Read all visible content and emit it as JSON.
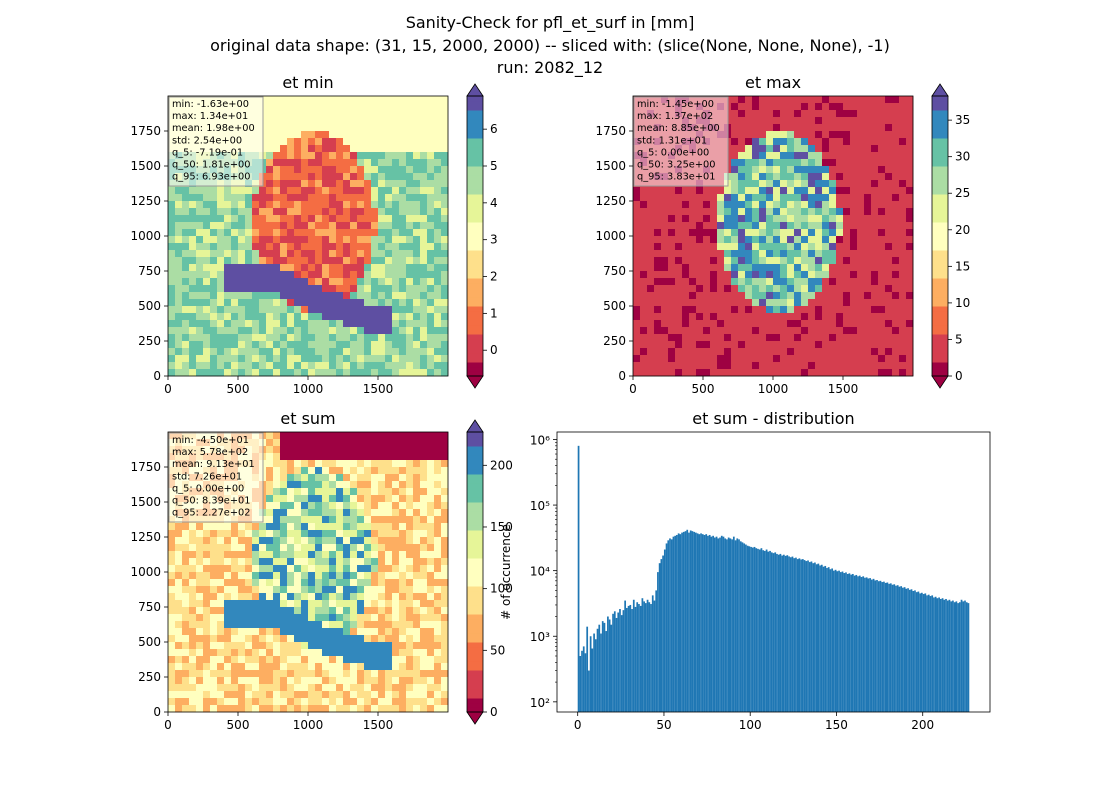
{
  "figure": {
    "title_lines": [
      "Sanity-Check for pfl_et_surf in [mm]",
      "original data shape: (31, 15, 2000, 2000) -- sliced with: (slice(None, None, None), -1)",
      "run: 2082_12"
    ]
  },
  "chart_data": [
    {
      "type": "heatmap",
      "title": "et min",
      "colormap": "Spectral",
      "xlim": [
        0,
        2000
      ],
      "ylim": [
        0,
        2000
      ],
      "x_ticks": [
        0,
        500,
        1000,
        1500
      ],
      "y_ticks": [
        0,
        250,
        500,
        750,
        1000,
        1250,
        1500,
        1750
      ],
      "colorbar": {
        "range": [
          -0.7,
          6.9
        ],
        "ticks": [
          0,
          1,
          2,
          3,
          4,
          5,
          6
        ],
        "extend": "both"
      },
      "stats": [
        "min: -1.63e+00",
        "max: 1.34e+01",
        "mean: 1.98e+00",
        "std: 2.54e+00",
        "q_5: -7.19e-01",
        "q_50: 1.81e+00",
        "q_95: 6.93e+00"
      ]
    },
    {
      "type": "heatmap",
      "title": "et max",
      "colormap": "Spectral",
      "xlim": [
        0,
        2000
      ],
      "ylim": [
        0,
        2000
      ],
      "x_ticks": [
        0,
        500,
        1000,
        1500
      ],
      "y_ticks": [
        0,
        250,
        500,
        750,
        1000,
        1250,
        1500,
        1750
      ],
      "colorbar": {
        "range": [
          0,
          38.3
        ],
        "ticks": [
          0,
          5,
          10,
          15,
          20,
          25,
          30,
          35
        ],
        "extend": "both"
      },
      "stats": [
        "min: -1.45e+00",
        "max: 1.37e+02",
        "mean: 8.85e+00",
        "std: 1.31e+01",
        "q_5: 0.00e+00",
        "q_50: 3.25e+00",
        "q_95: 3.83e+01"
      ]
    },
    {
      "type": "heatmap",
      "title": "et sum",
      "colormap": "Spectral",
      "xlim": [
        0,
        2000
      ],
      "ylim": [
        0,
        2000
      ],
      "x_ticks": [
        0,
        500,
        1000,
        1500
      ],
      "y_ticks": [
        0,
        250,
        500,
        750,
        1000,
        1250,
        1500,
        1750
      ],
      "colorbar": {
        "range": [
          0,
          227
        ],
        "ticks": [
          0,
          50,
          100,
          150,
          200
        ],
        "extend": "both"
      },
      "stats": [
        "min: -4.50e+01",
        "max: 5.78e+02",
        "mean: 9.13e+01",
        "std: 7.26e+01",
        "q_5: 0.00e+00",
        "q_50: 8.39e+01",
        "q_95: 2.27e+02"
      ]
    },
    {
      "type": "bar",
      "title": "et sum - distribution",
      "ylabel": "# of occurrence",
      "xlabel": "",
      "yscale": "log",
      "xlim": [
        -12,
        239
      ],
      "ylim": [
        70,
        1300000
      ],
      "x_ticks": [
        0,
        50,
        100,
        150,
        200
      ],
      "y_ticks": [
        {
          "value": 100,
          "label": "10²"
        },
        {
          "value": 1000,
          "label": "10³"
        },
        {
          "value": 10000,
          "label": "10⁴"
        },
        {
          "value": 100000,
          "label": "10⁵"
        },
        {
          "value": 1000000,
          "label": "10⁶"
        }
      ],
      "color": "#1f77b4",
      "bin_width": 1,
      "bins": [
        [
          0,
          800000
        ],
        [
          1,
          500
        ],
        [
          2,
          600
        ],
        [
          3,
          700
        ],
        [
          4,
          550
        ],
        [
          5,
          1400
        ],
        [
          6,
          300
        ],
        [
          7,
          1000
        ],
        [
          8,
          650
        ],
        [
          9,
          1100
        ],
        [
          10,
          900
        ],
        [
          11,
          1300
        ],
        [
          12,
          1500
        ],
        [
          13,
          1100
        ],
        [
          14,
          1700
        ],
        [
          15,
          1600
        ],
        [
          16,
          1200
        ],
        [
          17,
          2000
        ],
        [
          18,
          1800
        ],
        [
          19,
          1500
        ],
        [
          20,
          2200
        ],
        [
          21,
          2400
        ],
        [
          22,
          1900
        ],
        [
          23,
          2300
        ],
        [
          24,
          2600
        ],
        [
          25,
          2100
        ],
        [
          26,
          2500
        ],
        [
          27,
          3500
        ],
        [
          28,
          2700
        ],
        [
          29,
          2900
        ],
        [
          30,
          3000
        ],
        [
          31,
          2600
        ],
        [
          32,
          3600
        ],
        [
          33,
          2800
        ],
        [
          34,
          3300
        ],
        [
          35,
          3100
        ],
        [
          36,
          2900
        ],
        [
          37,
          3800
        ],
        [
          38,
          3400
        ],
        [
          39,
          3200
        ],
        [
          40,
          3600
        ],
        [
          41,
          3300
        ],
        [
          42,
          3100
        ],
        [
          43,
          4200
        ],
        [
          44,
          3500
        ],
        [
          45,
          5000
        ],
        [
          46,
          9500
        ],
        [
          47,
          13000
        ],
        [
          48,
          15000
        ],
        [
          49,
          17000
        ],
        [
          50,
          21000
        ],
        [
          51,
          26000
        ],
        [
          52,
          29000
        ],
        [
          53,
          31000
        ],
        [
          54,
          30000
        ],
        [
          55,
          33000
        ],
        [
          56,
          34000
        ],
        [
          57,
          35000
        ],
        [
          58,
          37000
        ],
        [
          59,
          36000
        ],
        [
          60,
          38000
        ],
        [
          61,
          39000
        ],
        [
          62,
          40000
        ],
        [
          63,
          42000
        ],
        [
          64,
          38000
        ],
        [
          65,
          41000
        ],
        [
          66,
          40000
        ],
        [
          67,
          39000
        ],
        [
          68,
          38000
        ],
        [
          69,
          37000
        ],
        [
          70,
          36000
        ],
        [
          71,
          37000
        ],
        [
          72,
          36000
        ],
        [
          73,
          35000
        ],
        [
          74,
          36000
        ],
        [
          75,
          34000
        ],
        [
          76,
          35000
        ],
        [
          77,
          33000
        ],
        [
          78,
          34000
        ],
        [
          79,
          32000
        ],
        [
          80,
          33000
        ],
        [
          81,
          31000
        ],
        [
          82,
          32000
        ],
        [
          83,
          34000
        ],
        [
          84,
          33000
        ],
        [
          85,
          31000
        ],
        [
          86,
          30000
        ],
        [
          87,
          32000
        ],
        [
          88,
          31000
        ],
        [
          89,
          30000
        ],
        [
          90,
          33000
        ],
        [
          91,
          29000
        ],
        [
          92,
          31000
        ],
        [
          93,
          30000
        ],
        [
          94,
          28000
        ],
        [
          95,
          27000
        ],
        [
          96,
          26000
        ],
        [
          97,
          25000
        ],
        [
          98,
          24000
        ],
        [
          99,
          23500
        ],
        [
          100,
          23000
        ],
        [
          101,
          22500
        ],
        [
          102,
          23000
        ],
        [
          103,
          22000
        ],
        [
          104,
          21500
        ],
        [
          105,
          21000
        ],
        [
          106,
          22000
        ],
        [
          107,
          20500
        ],
        [
          108,
          20000
        ],
        [
          109,
          21000
        ],
        [
          110,
          19500
        ],
        [
          111,
          20000
        ],
        [
          112,
          19000
        ],
        [
          113,
          18500
        ],
        [
          114,
          19000
        ],
        [
          115,
          18000
        ],
        [
          116,
          17500
        ],
        [
          117,
          18000
        ],
        [
          118,
          17000
        ],
        [
          119,
          17500
        ],
        [
          120,
          16800
        ],
        [
          121,
          17200
        ],
        [
          122,
          16500
        ],
        [
          123,
          16000
        ],
        [
          124,
          16400
        ],
        [
          125,
          15500
        ],
        [
          126,
          15800
        ],
        [
          127,
          15000
        ],
        [
          128,
          15400
        ],
        [
          129,
          14800
        ],
        [
          130,
          15000
        ],
        [
          131,
          14500
        ],
        [
          132,
          14000
        ],
        [
          133,
          14300
        ],
        [
          134,
          13500
        ],
        [
          135,
          13800
        ],
        [
          136,
          13000
        ],
        [
          137,
          13300
        ],
        [
          138,
          12500
        ],
        [
          139,
          12800
        ],
        [
          140,
          12000
        ],
        [
          141,
          12300
        ],
        [
          142,
          11500
        ],
        [
          143,
          11800
        ],
        [
          144,
          11000
        ],
        [
          145,
          11300
        ],
        [
          146,
          10500
        ],
        [
          147,
          10800
        ],
        [
          148,
          10000
        ],
        [
          149,
          10300
        ],
        [
          150,
          9800
        ],
        [
          151,
          10000
        ],
        [
          152,
          9500
        ],
        [
          153,
          9700
        ],
        [
          154,
          9200
        ],
        [
          155,
          9400
        ],
        [
          156,
          8900
        ],
        [
          157,
          9100
        ],
        [
          158,
          8700
        ],
        [
          159,
          8900
        ],
        [
          160,
          8400
        ],
        [
          161,
          8600
        ],
        [
          162,
          8200
        ],
        [
          163,
          8400
        ],
        [
          164,
          8000
        ],
        [
          165,
          8200
        ],
        [
          166,
          7800
        ],
        [
          167,
          7900
        ],
        [
          168,
          7600
        ],
        [
          169,
          7700
        ],
        [
          170,
          7300
        ],
        [
          171,
          7500
        ],
        [
          172,
          7100
        ],
        [
          173,
          7200
        ],
        [
          174,
          6900
        ],
        [
          175,
          7000
        ],
        [
          176,
          6700
        ],
        [
          177,
          6800
        ],
        [
          178,
          6500
        ],
        [
          179,
          6600
        ],
        [
          180,
          6300
        ],
        [
          181,
          6400
        ],
        [
          182,
          6100
        ],
        [
          183,
          6200
        ],
        [
          184,
          5900
        ],
        [
          185,
          6000
        ],
        [
          186,
          5700
        ],
        [
          187,
          5800
        ],
        [
          188,
          5500
        ],
        [
          189,
          5600
        ],
        [
          190,
          5300
        ],
        [
          191,
          5400
        ],
        [
          192,
          5100
        ],
        [
          193,
          5200
        ],
        [
          194,
          4900
        ],
        [
          195,
          5000
        ],
        [
          196,
          4700
        ],
        [
          197,
          4800
        ],
        [
          198,
          4500
        ],
        [
          199,
          4600
        ],
        [
          200,
          4400
        ],
        [
          201,
          4500
        ],
        [
          202,
          4200
        ],
        [
          203,
          4300
        ],
        [
          204,
          4100
        ],
        [
          205,
          4200
        ],
        [
          206,
          3900
        ],
        [
          207,
          4000
        ],
        [
          208,
          3800
        ],
        [
          209,
          3900
        ],
        [
          210,
          3700
        ],
        [
          211,
          3800
        ],
        [
          212,
          3600
        ],
        [
          213,
          3700
        ],
        [
          214,
          3500
        ],
        [
          215,
          3600
        ],
        [
          216,
          3400
        ],
        [
          217,
          3500
        ],
        [
          218,
          3300
        ],
        [
          219,
          3400
        ],
        [
          220,
          3200
        ],
        [
          221,
          3300
        ],
        [
          222,
          3600
        ],
        [
          223,
          3400
        ],
        [
          224,
          3500
        ],
        [
          225,
          3300
        ],
        [
          226,
          3200
        ]
      ]
    }
  ]
}
